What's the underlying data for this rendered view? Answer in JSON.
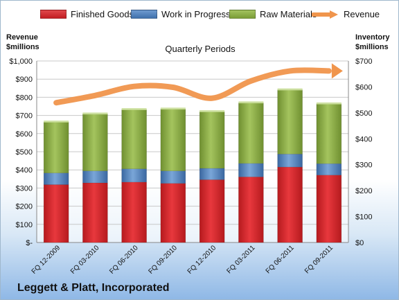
{
  "legend": {
    "finished": "Finished Goods",
    "wip": "Work in Progress",
    "raw": "Raw Materials",
    "revenue": "Revenue"
  },
  "left_axis_title": [
    "Revenue",
    "$millions"
  ],
  "right_axis_title": [
    "Inventory",
    "$millions"
  ],
  "company": "Leggett & Platt, Incorporated",
  "colors": {
    "finished": "#d9262b",
    "wip": "#4f81bd",
    "raw": "#8db043",
    "revenue": "#f0954c"
  },
  "chart_data": {
    "type": "bar",
    "stacked": true,
    "title": "Quarterly Periods",
    "categories": [
      "FQ 12-2009",
      "FQ 03-2010",
      "FQ 06-2010",
      "FQ 09-2010",
      "FQ 12-2010",
      "FQ 03-2011",
      "FQ 06-2011",
      "FQ 09-2011"
    ],
    "series": [
      {
        "name": "Finished Goods",
        "axis": "right",
        "values": [
          223,
          230,
          233,
          228,
          242,
          253,
          291,
          260
        ]
      },
      {
        "name": "Work in Progress",
        "axis": "right",
        "values": [
          45,
          46,
          51,
          48,
          44,
          52,
          50,
          44
        ]
      },
      {
        "name": "Raw Materials",
        "axis": "right",
        "values": [
          197,
          220,
          229,
          239,
          219,
          234,
          248,
          231
        ]
      },
      {
        "name": "Revenue",
        "type": "line",
        "axis": "left",
        "values": [
          770,
          810,
          860,
          855,
          795,
          890,
          945,
          945
        ]
      }
    ],
    "ylabel_left": "Revenue $millions",
    "ylabel_right": "Inventory $millions",
    "ylim_left": [
      0,
      1000
    ],
    "ylim_right": [
      0,
      700
    ],
    "yticks_left": [
      "$-",
      "$100",
      "$200",
      "$300",
      "$400",
      "$500",
      "$600",
      "$700",
      "$800",
      "$900",
      "$1,000"
    ],
    "yticks_right": [
      "$0",
      "$100",
      "$200",
      "$300",
      "$400",
      "$500",
      "$600",
      "$700"
    ],
    "grid": true,
    "legend_position": "top"
  }
}
